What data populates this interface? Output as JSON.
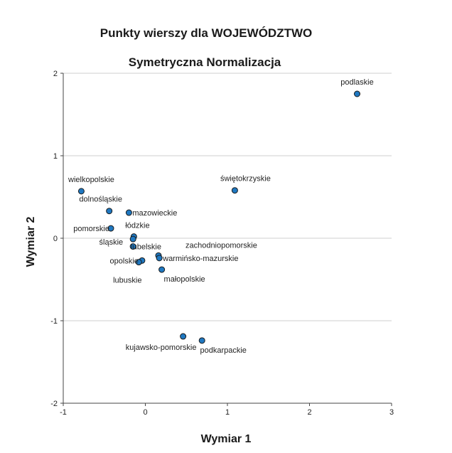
{
  "chart_data": {
    "type": "scatter",
    "title": "Punkty wierszy dla WOJEWÓDZTWO",
    "subtitle": "Symetryczna Normalizacja",
    "xlabel": "Wymiar 1",
    "ylabel": "Wymiar 2",
    "xlim": [
      -1,
      3
    ],
    "ylim": [
      -2,
      2
    ],
    "xticks": [
      "-1",
      "0",
      "1",
      "2",
      "3"
    ],
    "yticks": [
      "-2",
      "-1",
      "0",
      "1",
      "2"
    ],
    "grid": "horizontal",
    "point_color": "#1f78c1",
    "points": [
      {
        "label": "podlaskie",
        "x": 2.58,
        "y": 1.75
      },
      {
        "label": "świętokrzyskie",
        "x": 1.09,
        "y": 0.58
      },
      {
        "label": "wielkopolskie",
        "x": -0.78,
        "y": 0.57
      },
      {
        "label": "dolnośląskie",
        "x": -0.44,
        "y": 0.33
      },
      {
        "label": "mazowieckie",
        "x": -0.2,
        "y": 0.31
      },
      {
        "label": "pomorskie",
        "x": -0.42,
        "y": 0.12
      },
      {
        "label": "łódzkie",
        "x": -0.14,
        "y": 0.02
      },
      {
        "label": "śląskie",
        "x": -0.15,
        "y": -0.01
      },
      {
        "label": "lubelskie",
        "x": -0.15,
        "y": -0.1
      },
      {
        "label": "zachodniopomorskie",
        "x": 0.16,
        "y": -0.21
      },
      {
        "label": "warmińsko-mazurskie",
        "x": 0.17,
        "y": -0.24
      },
      {
        "label": "opolskie",
        "x": -0.04,
        "y": -0.27
      },
      {
        "label": "lubuskie",
        "x": -0.08,
        "y": -0.29
      },
      {
        "label": "małopolskie",
        "x": 0.2,
        "y": -0.38
      },
      {
        "label": "kujawsko-pomorskie",
        "x": 0.46,
        "y": -1.19
      },
      {
        "label": "podkarpackie",
        "x": 0.69,
        "y": -1.24
      }
    ]
  }
}
